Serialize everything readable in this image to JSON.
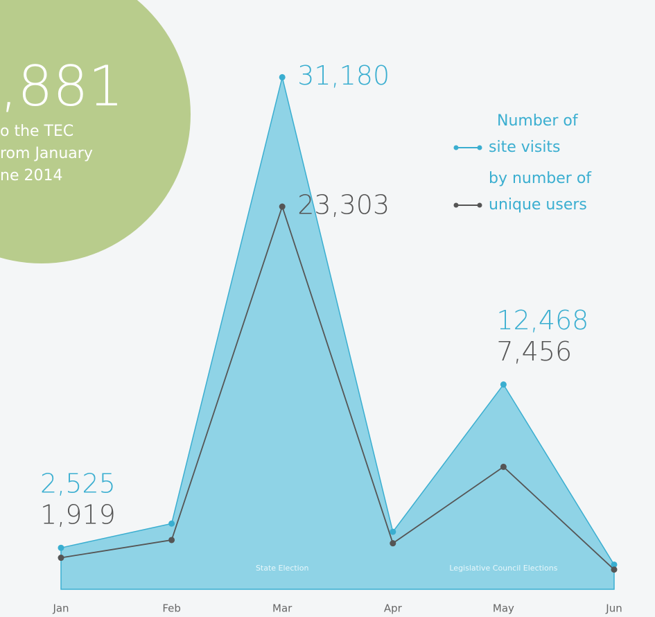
{
  "circle": {
    "number": ",881",
    "lines": [
      "o the TEC",
      "rom January",
      "ne 2014"
    ]
  },
  "chart_data": {
    "type": "area-line",
    "categories": [
      "Jan",
      "Feb",
      "Mar",
      "Apr",
      "May",
      "Jun"
    ],
    "ylim": [
      0,
      32000
    ],
    "series": [
      {
        "name": "Number of site visits",
        "color": "#3aaed0",
        "values": [
          2525,
          4000,
          31180,
          3500,
          12468,
          1500
        ],
        "value_labels": [
          "2,525",
          null,
          "31,180",
          null,
          "12,468",
          null
        ]
      },
      {
        "name": "by number of unique users",
        "color": "#555555",
        "values": [
          1919,
          3000,
          23303,
          2800,
          7456,
          1200
        ],
        "value_labels": [
          "1,919",
          null,
          "23,303",
          null,
          "7,456",
          null
        ]
      }
    ],
    "legend_lines": [
      [
        "Number of",
        "site visits"
      ],
      [
        "by number of",
        "unique users"
      ]
    ],
    "annotations": [
      {
        "text": "State Election",
        "category": 2
      },
      {
        "text": "Legislative Council Elections",
        "category": 4
      }
    ]
  }
}
